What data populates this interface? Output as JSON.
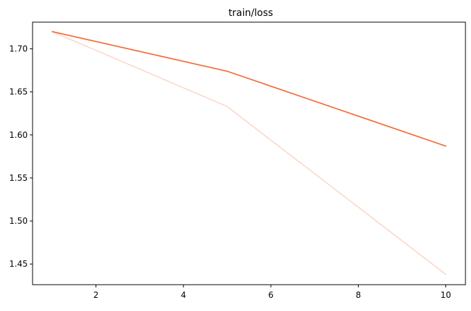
{
  "chart_data": {
    "type": "line",
    "title": "train/loss",
    "xlabel": "",
    "ylabel": "",
    "xlim": [
      0.55,
      10.45
    ],
    "ylim": [
      1.426,
      1.731
    ],
    "xticks": [
      2,
      4,
      6,
      8,
      10
    ],
    "yticks": [
      1.45,
      1.5,
      1.55,
      1.6,
      1.65,
      1.7
    ],
    "xtick_labels": [
      "2",
      "4",
      "6",
      "8",
      "10"
    ],
    "ytick_labels": [
      "1.45",
      "1.50",
      "1.55",
      "1.60",
      "1.65",
      "1.70"
    ],
    "grid": false,
    "series": [
      {
        "color": "#fbd9cc",
        "x": [
          1,
          5,
          10
        ],
        "y": [
          1.72,
          1.633,
          1.438
        ]
      },
      {
        "color": "#f4703f",
        "x": [
          1,
          5,
          10
        ],
        "y": [
          1.72,
          1.674,
          1.587
        ]
      }
    ]
  }
}
